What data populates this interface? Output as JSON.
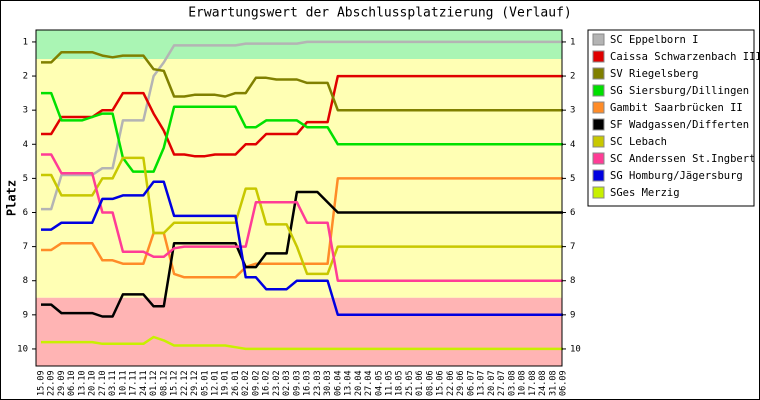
{
  "chart_data": {
    "type": "line",
    "title": "Erwartungswert der Abschlussplatzierung (Verlauf)",
    "y_label": "Platz",
    "categories": [
      "15.09",
      "22.09",
      "29.09",
      "06.10",
      "13.10",
      "20.10",
      "27.10",
      "03.11",
      "10.11",
      "17.11",
      "24.11",
      "01.12",
      "08.12",
      "15.12",
      "22.12",
      "29.12",
      "05.01",
      "12.01",
      "19.01",
      "26.01",
      "02.02",
      "09.02",
      "16.02",
      "23.02",
      "02.03",
      "09.03",
      "16.03",
      "23.03",
      "30.03",
      "06.04",
      "13.04",
      "20.04",
      "27.04",
      "04.05",
      "11.05",
      "18.05",
      "25.05",
      "01.06",
      "08.06",
      "15.06",
      "22.06",
      "29.06",
      "06.07",
      "13.07",
      "20.07",
      "27.07",
      "03.08",
      "10.08",
      "17.08",
      "24.08",
      "31.08",
      "06.09"
    ],
    "ylim": [
      10.5,
      0.65
    ],
    "yticks": [
      1,
      2,
      3,
      4,
      5,
      6,
      7,
      8,
      9,
      10
    ],
    "bands": [
      {
        "from": 0.65,
        "to": 1.5,
        "color": "#aaf5b4"
      },
      {
        "from": 1.5,
        "to": 8.5,
        "color": "#ffffb4"
      },
      {
        "from": 8.5,
        "to": 10.5,
        "color": "#ffb4b4"
      }
    ],
    "legend": "right",
    "series": [
      {
        "name": "SC Eppelborn I",
        "color": "#b4b4b4",
        "values": [
          5.9,
          5.9,
          4.9,
          4.9,
          4.9,
          4.9,
          4.7,
          4.7,
          3.3,
          3.3,
          3.3,
          2.0,
          1.6,
          1.1,
          1.1,
          1.1,
          1.1,
          1.1,
          1.1,
          1.1,
          1.05,
          1.05,
          1.05,
          1.05,
          1.05,
          1.05,
          1.0,
          1.0,
          1.0,
          1.0,
          1.0,
          1.0,
          1.0,
          1.0,
          1.0,
          1.0,
          1.0,
          1.0,
          1.0,
          1.0,
          1.0,
          1.0,
          1.0,
          1.0,
          1.0,
          1.0,
          1.0,
          1.0,
          1.0,
          1.0,
          1.0,
          1.0
        ]
      },
      {
        "name": "Caissa Schwarzenbach III",
        "color": "#e00000",
        "values": [
          3.7,
          3.7,
          3.2,
          3.2,
          3.2,
          3.2,
          3.0,
          3.0,
          2.5,
          2.5,
          2.5,
          3.1,
          3.6,
          4.3,
          4.3,
          4.35,
          4.35,
          4.3,
          4.3,
          4.3,
          4.0,
          4.0,
          3.7,
          3.7,
          3.7,
          3.7,
          3.35,
          3.35,
          3.35,
          2.0,
          2.0,
          2.0,
          2.0,
          2.0,
          2.0,
          2.0,
          2.0,
          2.0,
          2.0,
          2.0,
          2.0,
          2.0,
          2.0,
          2.0,
          2.0,
          2.0,
          2.0,
          2.0,
          2.0,
          2.0,
          2.0,
          2.0
        ]
      },
      {
        "name": "SV Riegelsberg",
        "color": "#808000",
        "values": [
          1.6,
          1.6,
          1.3,
          1.3,
          1.3,
          1.3,
          1.4,
          1.45,
          1.4,
          1.4,
          1.4,
          1.8,
          1.85,
          2.6,
          2.6,
          2.55,
          2.55,
          2.55,
          2.6,
          2.5,
          2.5,
          2.05,
          2.05,
          2.1,
          2.1,
          2.1,
          2.2,
          2.2,
          2.2,
          3.0,
          3.0,
          3.0,
          3.0,
          3.0,
          3.0,
          3.0,
          3.0,
          3.0,
          3.0,
          3.0,
          3.0,
          3.0,
          3.0,
          3.0,
          3.0,
          3.0,
          3.0,
          3.0,
          3.0,
          3.0,
          3.0,
          3.0
        ]
      },
      {
        "name": "SG Siersburg/Dillingen",
        "color": "#00e000",
        "values": [
          2.5,
          2.5,
          3.3,
          3.3,
          3.3,
          3.2,
          3.1,
          3.1,
          4.4,
          4.8,
          4.8,
          4.8,
          4.1,
          2.9,
          2.9,
          2.9,
          2.9,
          2.9,
          2.9,
          2.9,
          3.5,
          3.5,
          3.3,
          3.3,
          3.3,
          3.3,
          3.5,
          3.5,
          3.5,
          4.0,
          4.0,
          4.0,
          4.0,
          4.0,
          4.0,
          4.0,
          4.0,
          4.0,
          4.0,
          4.0,
          4.0,
          4.0,
          4.0,
          4.0,
          4.0,
          4.0,
          4.0,
          4.0,
          4.0,
          4.0,
          4.0,
          4.0
        ]
      },
      {
        "name": "Gambit Saarbrücken II",
        "color": "#ff8c28",
        "values": [
          7.1,
          7.1,
          6.9,
          6.9,
          6.9,
          6.9,
          7.4,
          7.4,
          7.5,
          7.5,
          7.5,
          6.6,
          6.6,
          7.8,
          7.9,
          7.9,
          7.9,
          7.9,
          7.9,
          7.9,
          7.6,
          7.5,
          7.5,
          7.5,
          7.5,
          7.5,
          7.5,
          7.5,
          7.5,
          5.0,
          5.0,
          5.0,
          5.0,
          5.0,
          5.0,
          5.0,
          5.0,
          5.0,
          5.0,
          5.0,
          5.0,
          5.0,
          5.0,
          5.0,
          5.0,
          5.0,
          5.0,
          5.0,
          5.0,
          5.0,
          5.0,
          5.0
        ]
      },
      {
        "name": "SF Wadgassen/Differten",
        "color": "#000000",
        "values": [
          8.7,
          8.7,
          8.95,
          8.95,
          8.95,
          8.95,
          9.05,
          9.05,
          8.4,
          8.4,
          8.4,
          8.75,
          8.75,
          6.9,
          6.9,
          6.9,
          6.9,
          6.9,
          6.9,
          6.9,
          7.6,
          7.6,
          7.2,
          7.2,
          7.2,
          5.4,
          5.4,
          5.4,
          5.7,
          6.0,
          6.0,
          6.0,
          6.0,
          6.0,
          6.0,
          6.0,
          6.0,
          6.0,
          6.0,
          6.0,
          6.0,
          6.0,
          6.0,
          6.0,
          6.0,
          6.0,
          6.0,
          6.0,
          6.0,
          6.0,
          6.0,
          6.0
        ]
      },
      {
        "name": "SC Lebach",
        "color": "#c8c800",
        "values": [
          4.9,
          4.9,
          5.5,
          5.5,
          5.5,
          5.5,
          5.0,
          5.0,
          4.4,
          4.4,
          4.4,
          6.6,
          6.6,
          6.3,
          6.3,
          6.3,
          6.3,
          6.3,
          6.3,
          6.3,
          5.3,
          5.3,
          6.35,
          6.35,
          6.35,
          7.0,
          7.8,
          7.8,
          7.8,
          7.0,
          7.0,
          7.0,
          7.0,
          7.0,
          7.0,
          7.0,
          7.0,
          7.0,
          7.0,
          7.0,
          7.0,
          7.0,
          7.0,
          7.0,
          7.0,
          7.0,
          7.0,
          7.0,
          7.0,
          7.0,
          7.0,
          7.0
        ]
      },
      {
        "name": "SC Anderssen St.Ingbert",
        "color": "#ff3c96",
        "values": [
          4.3,
          4.3,
          4.85,
          4.85,
          4.85,
          4.85,
          6.0,
          6.0,
          7.15,
          7.15,
          7.15,
          7.3,
          7.3,
          7.05,
          7.0,
          7.0,
          7.0,
          7.0,
          7.0,
          7.0,
          7.0,
          5.7,
          5.7,
          5.7,
          5.7,
          5.7,
          6.3,
          6.3,
          6.3,
          8.0,
          8.0,
          8.0,
          8.0,
          8.0,
          8.0,
          8.0,
          8.0,
          8.0,
          8.0,
          8.0,
          8.0,
          8.0,
          8.0,
          8.0,
          8.0,
          8.0,
          8.0,
          8.0,
          8.0,
          8.0,
          8.0,
          8.0
        ]
      },
      {
        "name": "SG Homburg/Jägersburg",
        "color": "#0000e0",
        "values": [
          6.5,
          6.5,
          6.3,
          6.3,
          6.3,
          6.3,
          5.6,
          5.6,
          5.5,
          5.5,
          5.5,
          5.1,
          5.1,
          6.1,
          6.1,
          6.1,
          6.1,
          6.1,
          6.1,
          6.1,
          7.9,
          7.9,
          8.25,
          8.25,
          8.25,
          8.0,
          8.0,
          8.0,
          8.0,
          9.0,
          9.0,
          9.0,
          9.0,
          9.0,
          9.0,
          9.0,
          9.0,
          9.0,
          9.0,
          9.0,
          9.0,
          9.0,
          9.0,
          9.0,
          9.0,
          9.0,
          9.0,
          9.0,
          9.0,
          9.0,
          9.0,
          9.0
        ]
      },
      {
        "name": "SGes Merzig",
        "color": "#c8f000",
        "values": [
          9.8,
          9.8,
          9.8,
          9.8,
          9.8,
          9.8,
          9.85,
          9.85,
          9.85,
          9.85,
          9.85,
          9.65,
          9.75,
          9.9,
          9.9,
          9.9,
          9.9,
          9.9,
          9.9,
          9.95,
          10.0,
          10.0,
          10.0,
          10.0,
          10.0,
          10.0,
          10.0,
          10.0,
          10.0,
          10.0,
          10.0,
          10.0,
          10.0,
          10.0,
          10.0,
          10.0,
          10.0,
          10.0,
          10.0,
          10.0,
          10.0,
          10.0,
          10.0,
          10.0,
          10.0,
          10.0,
          10.0,
          10.0,
          10.0,
          10.0,
          10.0,
          10.0
        ]
      }
    ]
  }
}
